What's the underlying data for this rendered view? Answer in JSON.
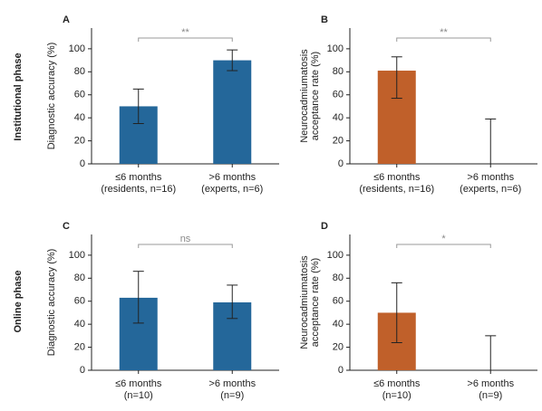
{
  "row_labels": [
    "Institutional phase",
    "Online phase"
  ],
  "chart_data": [
    {
      "type": "bar",
      "panel": "A",
      "ylabel": [
        "Diagnostic accuracy (%)"
      ],
      "categories": [
        [
          "≤6 months",
          "(residents, n=16)"
        ],
        [
          ">6 months",
          "(experts, n=6)"
        ]
      ],
      "values": [
        50,
        90
      ],
      "error_low": [
        35,
        81
      ],
      "error_high": [
        65,
        99
      ],
      "color": "#24679a",
      "annotation": "**",
      "ylim": [
        0,
        118
      ],
      "yticks": [
        0,
        20,
        40,
        60,
        80,
        100
      ]
    },
    {
      "type": "bar",
      "panel": "B",
      "ylabel": [
        "Neurocadmiumatosis",
        "acceptance rate (%)"
      ],
      "categories": [
        [
          "≤6 months",
          "(residents, n=16)"
        ],
        [
          ">6 months",
          "(experts, n=6)"
        ]
      ],
      "values": [
        81,
        0
      ],
      "error_low": [
        57,
        0
      ],
      "error_high": [
        93,
        39
      ],
      "color": "#c0602a",
      "annotation": "**",
      "ylim": [
        0,
        118
      ],
      "yticks": [
        0,
        20,
        40,
        60,
        80,
        100
      ]
    },
    {
      "type": "bar",
      "panel": "C",
      "ylabel": [
        "Diagnostic accuracy (%)"
      ],
      "categories": [
        [
          "≤6 months",
          "(n=10)"
        ],
        [
          ">6 months",
          "(n=9)"
        ]
      ],
      "values": [
        63,
        59
      ],
      "error_low": [
        41,
        45
      ],
      "error_high": [
        86,
        74
      ],
      "color": "#24679a",
      "annotation": "ns",
      "ylim": [
        0,
        118
      ],
      "yticks": [
        0,
        20,
        40,
        60,
        80,
        100
      ]
    },
    {
      "type": "bar",
      "panel": "D",
      "ylabel": [
        "Neurocadmiumatosis",
        "acceptance rate (%)"
      ],
      "categories": [
        [
          "≤6 months",
          "(n=10)"
        ],
        [
          ">6 months",
          "(n=9)"
        ]
      ],
      "values": [
        50,
        0
      ],
      "error_low": [
        24,
        0
      ],
      "error_high": [
        76,
        30
      ],
      "color": "#c0602a",
      "annotation": "*",
      "ylim": [
        0,
        118
      ],
      "yticks": [
        0,
        20,
        40,
        60,
        80,
        100
      ]
    }
  ]
}
